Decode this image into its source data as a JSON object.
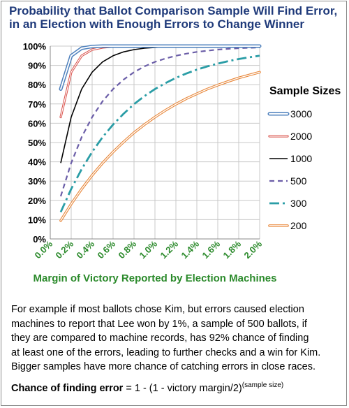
{
  "title_lines": [
    "Probability that Ballot Comparison Sample Will Find Error,",
    "in an Election with Enough Errors to Change Winner"
  ],
  "legend_title": "Sample Sizes",
  "xlabel": "Margin of Victory Reported by Election Machines",
  "description_lines": [
    "For example if most ballots chose Kim, but errors caused election",
    "machines to report that Lee won by 1%, a sample of 500 ballots, if",
    "they are compared to machine records, has 92% chance of finding",
    "at least one of the errors, leading to further checks and a win for Kim.",
    "Bigger samples have more chance of catching errors in close races."
  ],
  "formula": {
    "label": "Chance of finding error",
    "equals": "=",
    "expr": "1 - (1 - victory margin/2)",
    "exponent": "(sample size)"
  },
  "colors": {
    "3000": "#4f81bd",
    "2000": "#d9504a",
    "1000": "#000000",
    "500": "#6b5ea8",
    "300": "#2a9da6",
    "200": "#e8873a",
    "tick_x": "#2b8a2b",
    "title": "#1f3a7a"
  },
  "chart_data": {
    "type": "line",
    "title": "Probability that Ballot Comparison Sample Will Find Error, in an Election with Enough Errors to Change Winner",
    "xlabel": "Margin of Victory Reported by Election Machines",
    "ylabel": "",
    "xlim": [
      0,
      2.0
    ],
    "ylim": [
      0,
      100
    ],
    "x_ticks": [
      "0.0%",
      "0.2%",
      "0.4%",
      "0.6%",
      "0.8%",
      "1.0%",
      "1.2%",
      "1.4%",
      "1.6%",
      "1.8%",
      "2.0%"
    ],
    "y_ticks": [
      "0%",
      "10%",
      "20%",
      "30%",
      "40%",
      "50%",
      "60%",
      "70%",
      "80%",
      "90%",
      "100%"
    ],
    "grid": true,
    "legend": "right",
    "x": [
      0.1,
      0.2,
      0.3,
      0.4,
      0.5,
      0.6,
      0.7,
      0.8,
      0.9,
      1.0,
      1.1,
      1.2,
      1.3,
      1.4,
      1.5,
      1.6,
      1.7,
      1.8,
      1.9,
      2.0
    ],
    "series": [
      {
        "name": "3000",
        "values": [
          77.7,
          95.0,
          98.9,
          99.8,
          100,
          100,
          100,
          100,
          100,
          100,
          100,
          100,
          100,
          100,
          100,
          100,
          100,
          100,
          100,
          100
        ]
      },
      {
        "name": "2000",
        "values": [
          63.2,
          86.5,
          95.0,
          98.2,
          99.3,
          99.8,
          99.9,
          100,
          100,
          100,
          100,
          100,
          100,
          100,
          100,
          100,
          100,
          100,
          100,
          100
        ]
      },
      {
        "name": "1000",
        "values": [
          39.4,
          63.2,
          77.7,
          86.5,
          91.8,
          95.0,
          97.0,
          98.2,
          98.9,
          99.3,
          99.6,
          99.8,
          99.8,
          99.9,
          99.9,
          100,
          100,
          100,
          100,
          100
        ]
      },
      {
        "name": "500",
        "values": [
          22.1,
          39.4,
          52.8,
          63.2,
          71.4,
          77.7,
          82.6,
          86.5,
          89.5,
          91.8,
          93.6,
          95.0,
          96.1,
          97.0,
          97.6,
          98.2,
          98.6,
          98.9,
          99.1,
          99.3
        ]
      },
      {
        "name": "300",
        "values": [
          13.9,
          25.9,
          36.2,
          45.1,
          52.8,
          59.3,
          64.9,
          69.9,
          74.1,
          77.7,
          80.8,
          83.5,
          85.8,
          87.8,
          89.5,
          90.9,
          92.2,
          93.3,
          94.2,
          95.0
        ]
      },
      {
        "name": "200",
        "values": [
          9.5,
          18.1,
          25.9,
          33.0,
          39.4,
          45.1,
          50.3,
          55.1,
          59.3,
          63.2,
          66.7,
          69.9,
          72.8,
          75.3,
          77.7,
          79.8,
          81.7,
          83.5,
          85.0,
          86.5
        ]
      }
    ]
  }
}
